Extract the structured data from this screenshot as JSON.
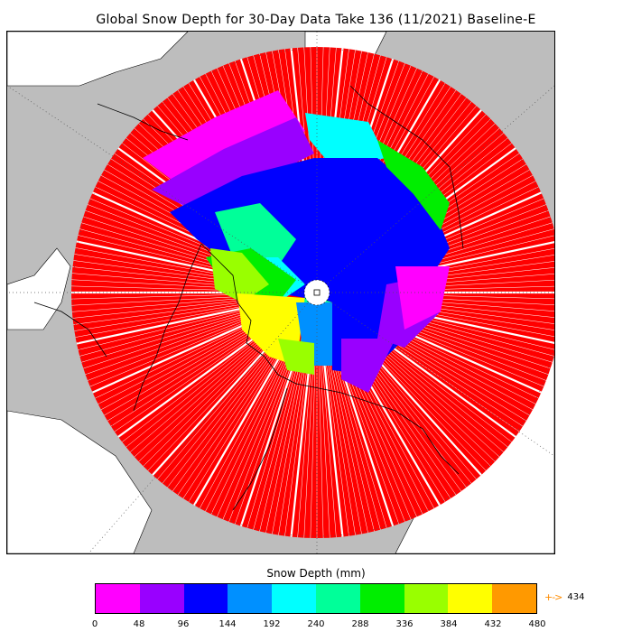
{
  "title": "Global Snow Depth for 30-Day Data Take 136 (11/2021) Baseline-E",
  "legend": {
    "title": "Snow Depth (mm)",
    "colors": [
      "#ff00ff",
      "#9900ff",
      "#0000ff",
      "#0090ff",
      "#00ffff",
      "#00ff99",
      "#00ee00",
      "#99ff00",
      "#ffff00",
      "#ff9900"
    ],
    "ticks": [
      "0",
      "48",
      "96",
      "144",
      "192",
      "240",
      "288",
      "336",
      "384",
      "432",
      "480"
    ],
    "overflow_value": "434",
    "overflow_color": "#ff8c00"
  },
  "map": {
    "projection": "north-polar-stereographic",
    "ocean_color": "#ffffff",
    "land_color": "#bdbdbd",
    "no_snow_color": "#ff0000"
  }
}
